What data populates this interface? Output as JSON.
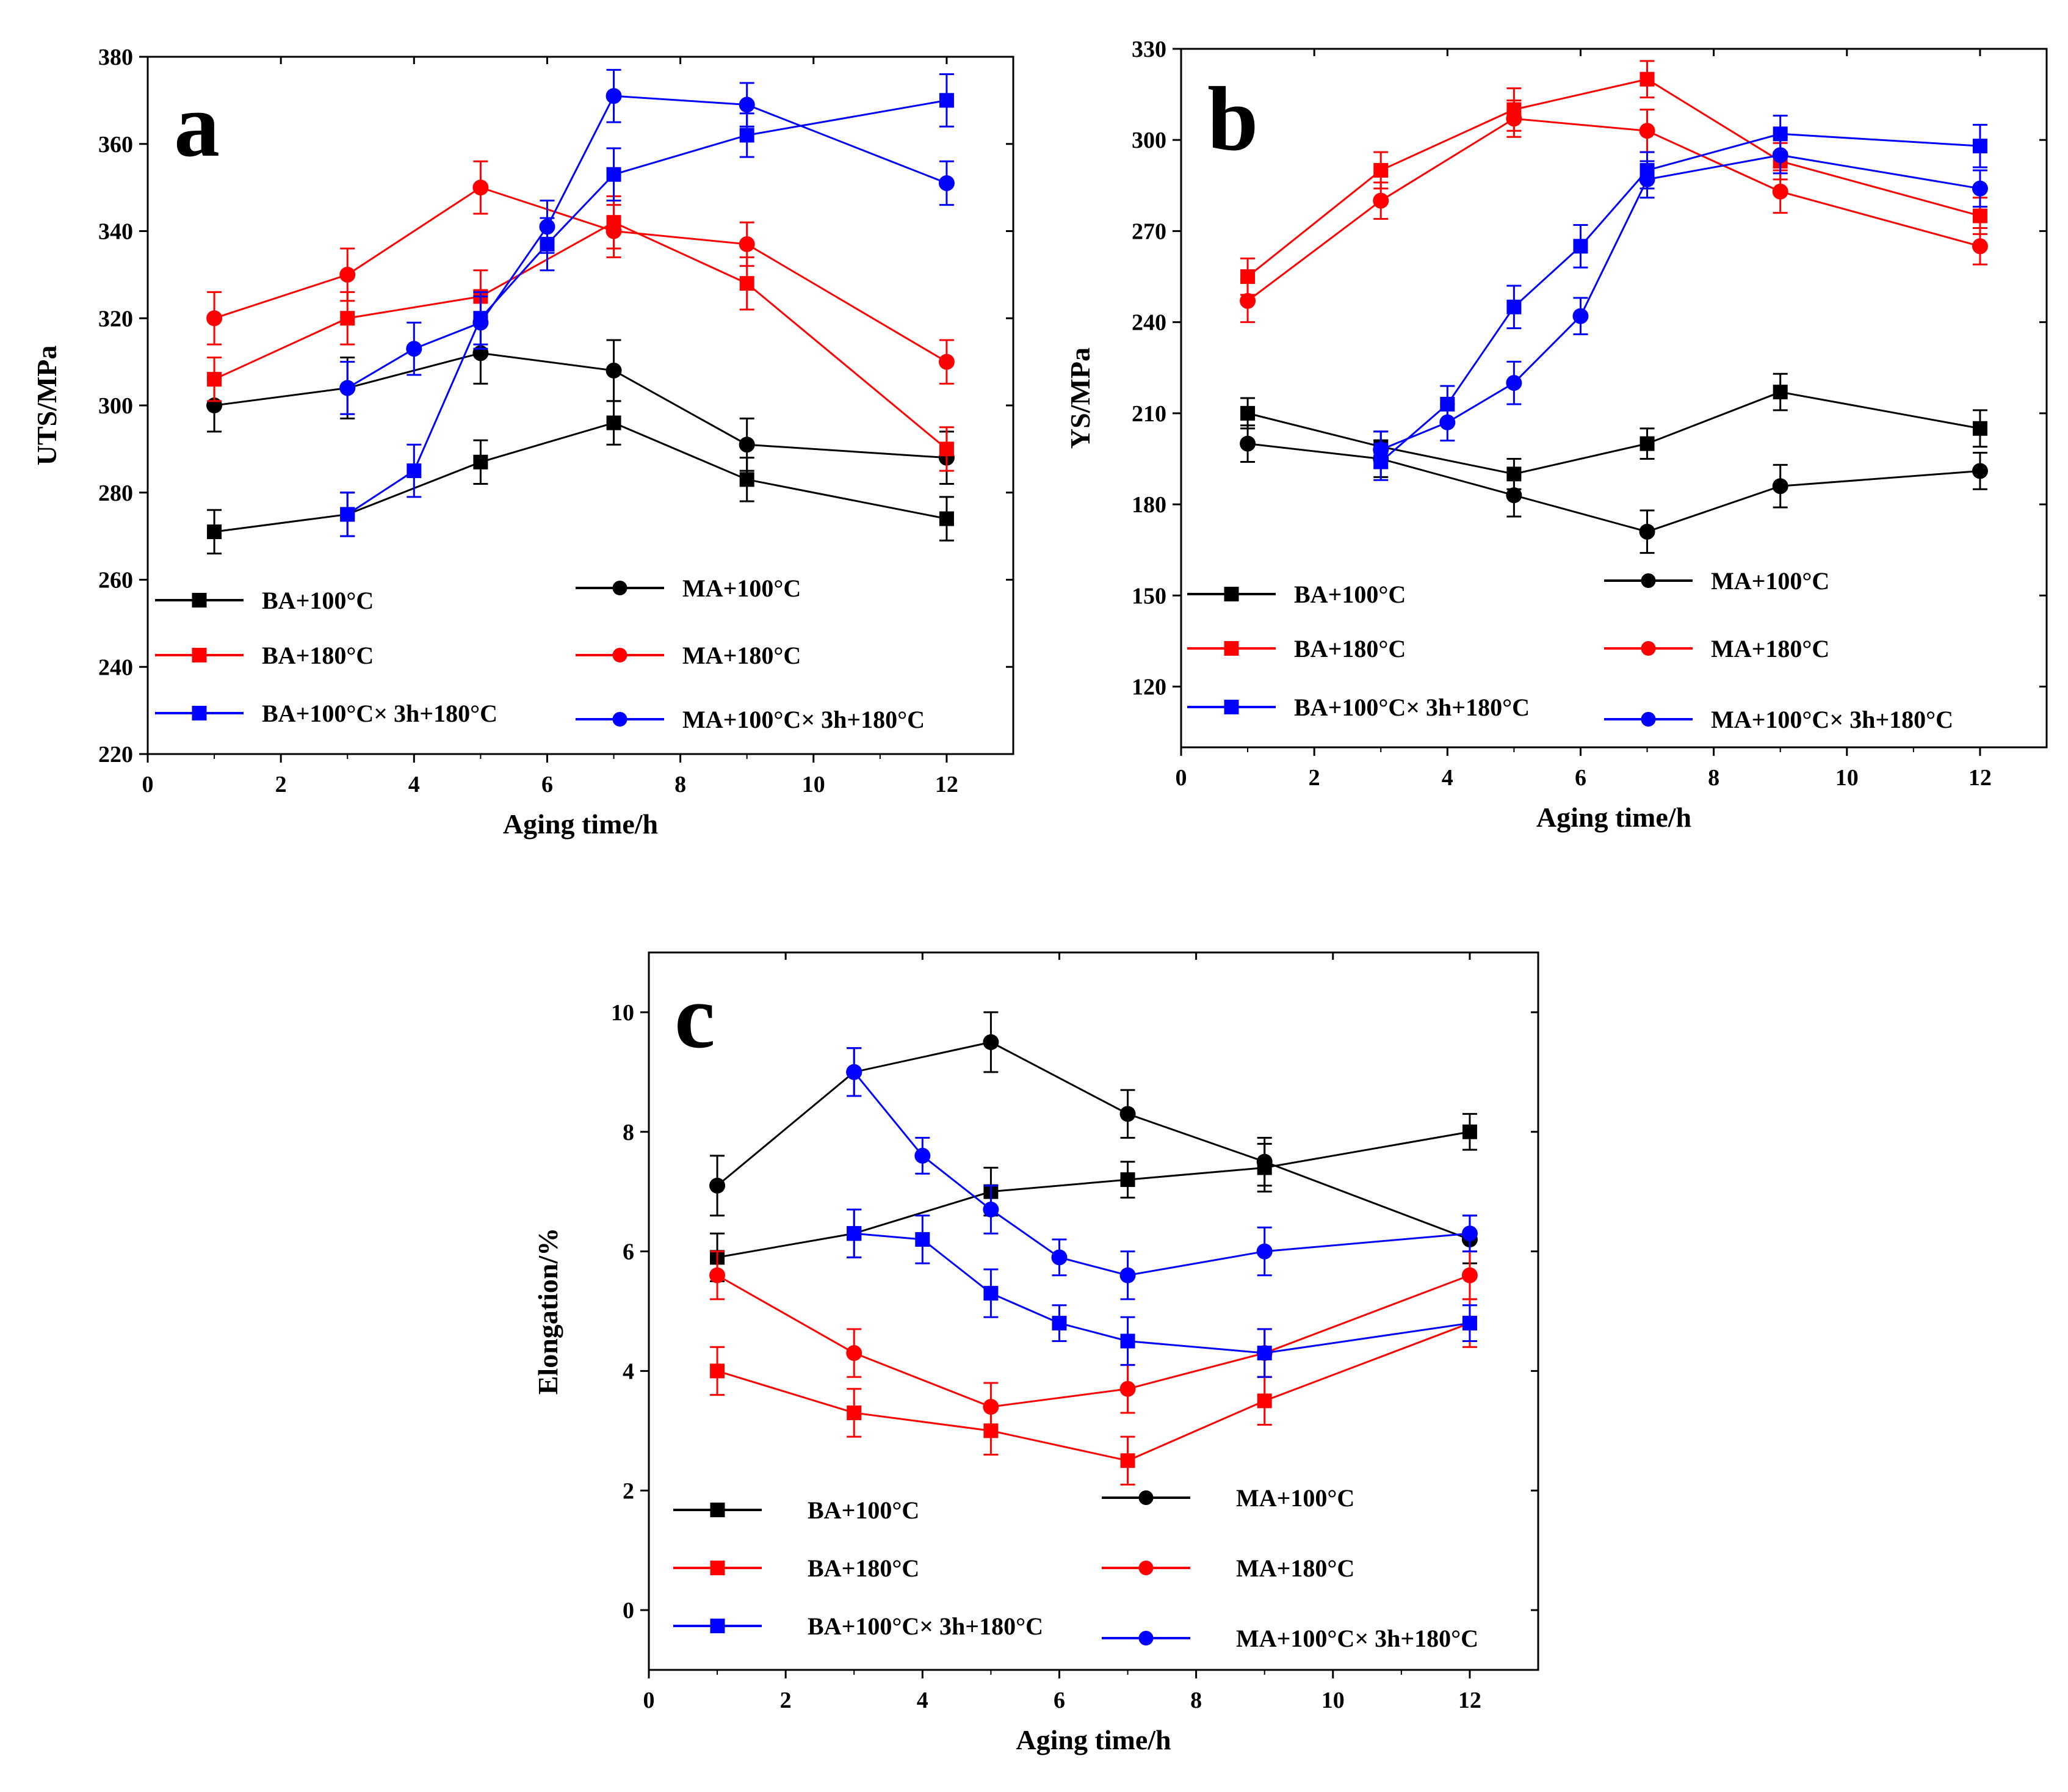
{
  "chart_data": [
    {
      "type": "line",
      "panel": "a",
      "xlabel": "Aging time/h",
      "ylabel": "UTS/MPa",
      "xlim": [
        0,
        13
      ],
      "ylim": [
        220,
        380
      ],
      "xticks": [
        0,
        2,
        4,
        6,
        8,
        10,
        12
      ],
      "yticks": [
        220,
        240,
        260,
        280,
        300,
        320,
        340,
        360,
        380
      ],
      "series": [
        {
          "name": "BA+100°C",
          "color": "#000000",
          "marker": "square",
          "x": [
            1,
            3,
            5,
            7,
            9,
            12
          ],
          "y": [
            271,
            275,
            287,
            296,
            283,
            274
          ],
          "err": [
            5,
            5,
            5,
            5,
            5,
            5
          ]
        },
        {
          "name": "MA+100°C",
          "color": "#000000",
          "marker": "circle",
          "x": [
            1,
            3,
            5,
            7,
            9,
            12
          ],
          "y": [
            300,
            304,
            312,
            308,
            291,
            288
          ],
          "err": [
            6,
            7,
            7,
            7,
            6,
            6
          ]
        },
        {
          "name": "BA+180°C",
          "color": "#ff0000",
          "marker": "square",
          "x": [
            1,
            3,
            5,
            7,
            9,
            12
          ],
          "y": [
            306,
            320,
            325,
            342,
            328,
            290
          ],
          "err": [
            5,
            6,
            6,
            6,
            6,
            5
          ]
        },
        {
          "name": "MA+180°C",
          "color": "#ff0000",
          "marker": "circle",
          "x": [
            1,
            3,
            5,
            7,
            9,
            12
          ],
          "y": [
            320,
            330,
            350,
            340,
            337,
            310
          ],
          "err": [
            6,
            6,
            6,
            6,
            5,
            5
          ]
        },
        {
          "name": "BA+100°C× 3h+180°C",
          "color": "#0000ff",
          "marker": "square",
          "x": [
            3,
            4,
            5,
            6,
            7,
            9,
            12
          ],
          "y": [
            275,
            285,
            320,
            337,
            353,
            362,
            370
          ],
          "err": [
            5,
            6,
            6,
            6,
            6,
            5,
            6
          ]
        },
        {
          "name": "MA+100°C× 3h+180°C",
          "color": "#0000ff",
          "marker": "circle",
          "x": [
            3,
            4,
            5,
            6,
            7,
            9,
            12
          ],
          "y": [
            304,
            313,
            319,
            341,
            371,
            369,
            351
          ],
          "err": [
            6,
            6,
            6,
            6,
            6,
            5,
            5
          ]
        }
      ]
    },
    {
      "type": "line",
      "panel": "b",
      "xlabel": "Aging time/h",
      "ylabel": "YS/MPa",
      "xlim": [
        0,
        13
      ],
      "ylim": [
        100,
        330
      ],
      "xticks": [
        0,
        2,
        4,
        6,
        8,
        10,
        12
      ],
      "yticks": [
        120,
        150,
        180,
        210,
        240,
        270,
        300,
        330
      ],
      "series": [
        {
          "name": "BA+100°C",
          "color": "#000000",
          "marker": "square",
          "x": [
            1,
            3,
            5,
            7,
            9,
            12
          ],
          "y": [
            210,
            199,
            190,
            200,
            217,
            205
          ],
          "err": [
            5,
            5,
            5,
            5,
            6,
            6
          ]
        },
        {
          "name": "MA+100°C",
          "color": "#000000",
          "marker": "circle",
          "x": [
            1,
            3,
            5,
            7,
            9,
            12
          ],
          "y": [
            200,
            195,
            183,
            171,
            186,
            191
          ],
          "err": [
            6,
            6,
            7,
            7,
            7,
            6
          ]
        },
        {
          "name": "BA+180°C",
          "color": "#ff0000",
          "marker": "square",
          "x": [
            1,
            3,
            5,
            7,
            9,
            12
          ],
          "y": [
            255,
            290,
            310,
            320,
            293,
            275
          ],
          "err": [
            6,
            6,
            7,
            6,
            6,
            6
          ]
        },
        {
          "name": "MA+180°C",
          "color": "#ff0000",
          "marker": "circle",
          "x": [
            1,
            3,
            5,
            7,
            9,
            12
          ],
          "y": [
            247,
            280,
            307,
            303,
            283,
            265
          ],
          "err": [
            7,
            6,
            6,
            7,
            7,
            6
          ]
        },
        {
          "name": "BA+100°C× 3h+180°C",
          "color": "#0000ff",
          "marker": "square",
          "x": [
            3,
            4,
            5,
            6,
            7,
            9,
            12
          ],
          "y": [
            194,
            213,
            245,
            265,
            290,
            302,
            298
          ],
          "err": [
            6,
            6,
            7,
            7,
            6,
            6,
            7
          ]
        },
        {
          "name": "MA+100°C× 3h+180°C",
          "color": "#0000ff",
          "marker": "circle",
          "x": [
            3,
            4,
            5,
            6,
            7,
            9,
            12
          ],
          "y": [
            198,
            207,
            220,
            242,
            287,
            295,
            284
          ],
          "err": [
            6,
            6,
            7,
            6,
            6,
            6,
            6
          ]
        }
      ]
    },
    {
      "type": "line",
      "panel": "c",
      "xlabel": "Aging time/h",
      "ylabel": "Elongation/%",
      "xlim": [
        0,
        13
      ],
      "ylim": [
        -1,
        11
      ],
      "xticks": [
        0,
        2,
        4,
        6,
        8,
        10,
        12
      ],
      "yticks": [
        0,
        2,
        4,
        6,
        8,
        10
      ],
      "series": [
        {
          "name": "BA+100°C",
          "color": "#000000",
          "marker": "square",
          "x": [
            1,
            3,
            5,
            7,
            9,
            12
          ],
          "y": [
            5.9,
            6.3,
            7.0,
            7.2,
            7.4,
            8.0
          ],
          "err": [
            0.4,
            0.4,
            0.4,
            0.3,
            0.4,
            0.3
          ]
        },
        {
          "name": "MA+100°C",
          "color": "#000000",
          "marker": "circle",
          "x": [
            1,
            3,
            5,
            7,
            9,
            12
          ],
          "y": [
            7.1,
            9.0,
            9.5,
            8.3,
            7.5,
            6.2
          ],
          "err": [
            0.5,
            0.4,
            0.5,
            0.4,
            0.4,
            0.4
          ]
        },
        {
          "name": "BA+180°C",
          "color": "#ff0000",
          "marker": "square",
          "x": [
            1,
            3,
            5,
            7,
            9,
            12
          ],
          "y": [
            4.0,
            3.3,
            3.0,
            2.5,
            3.5,
            4.8
          ],
          "err": [
            0.4,
            0.4,
            0.4,
            0.4,
            0.4,
            0.4
          ]
        },
        {
          "name": "MA+180°C",
          "color": "#ff0000",
          "marker": "circle",
          "x": [
            1,
            3,
            5,
            7,
            9,
            12
          ],
          "y": [
            5.6,
            4.3,
            3.4,
            3.7,
            4.3,
            5.6
          ],
          "err": [
            0.4,
            0.4,
            0.4,
            0.4,
            0.4,
            0.4
          ]
        },
        {
          "name": "BA+100°C× 3h+180°C",
          "color": "#0000ff",
          "marker": "square",
          "x": [
            3,
            4,
            5,
            6,
            7,
            9,
            12
          ],
          "y": [
            6.3,
            6.2,
            5.3,
            4.8,
            4.5,
            4.3,
            4.8
          ],
          "err": [
            0.4,
            0.4,
            0.4,
            0.3,
            0.4,
            0.4,
            0.3
          ]
        },
        {
          "name": "MA+100°C× 3h+180°C",
          "color": "#0000ff",
          "marker": "circle",
          "x": [
            3,
            4,
            5,
            6,
            7,
            9,
            12
          ],
          "y": [
            9.0,
            7.6,
            6.7,
            5.9,
            5.6,
            6.0,
            6.3
          ],
          "err": [
            0.4,
            0.3,
            0.4,
            0.3,
            0.4,
            0.4,
            0.3
          ]
        }
      ]
    }
  ]
}
